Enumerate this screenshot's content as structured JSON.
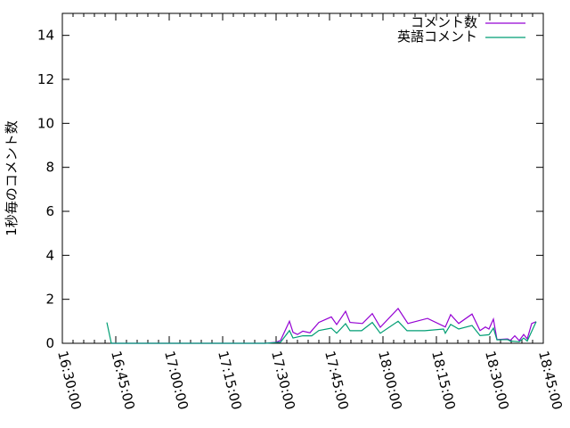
{
  "chart_data": {
    "type": "line",
    "title": "",
    "xlabel": "",
    "ylabel": "1秒毎のコメント数",
    "xlim": [
      "16:30:00",
      "18:45:00"
    ],
    "ylim": [
      0,
      15
    ],
    "x_tick_labels": [
      "16:30:00",
      "16:45:00",
      "17:00:00",
      "17:15:00",
      "17:30:00",
      "17:45:00",
      "18:00:00",
      "18:15:00",
      "18:30:00",
      "18:45:00"
    ],
    "y_tick_labels": [
      "0",
      "2",
      "4",
      "6",
      "8",
      "10",
      "12",
      "14"
    ],
    "grid": false,
    "legend_position": "top-right",
    "series": [
      {
        "name": "コメント数",
        "color": "#9400d3",
        "x": [
          "16:43:45",
          "17:27:00",
          "17:30:00",
          "17:31:15",
          "17:33:45",
          "17:34:45",
          "17:36:00",
          "17:37:30",
          "17:39:30",
          "17:42:00",
          "17:45:30",
          "17:47:00",
          "17:49:30",
          "17:50:45",
          "17:54:15",
          "17:57:00",
          "17:59:15",
          "18:04:15",
          "18:07:00",
          "18:12:30",
          "18:17:30",
          "18:19:00",
          "18:21:15",
          "18:25:00",
          "18:27:15",
          "18:28:45",
          "18:29:45",
          "18:31:00",
          "18:32:00",
          "18:35:00",
          "18:35:45",
          "18:37:00",
          "18:38:15",
          "18:39:30",
          "18:40:30",
          "18:41:45",
          "18:43:00"
        ],
        "y": [
          0,
          0,
          0.05,
          0.13,
          1.0,
          0.5,
          0.4,
          0.55,
          0.48,
          0.95,
          1.2,
          0.85,
          1.45,
          0.95,
          0.9,
          1.35,
          0.73,
          1.58,
          0.9,
          1.13,
          0.74,
          1.3,
          0.9,
          1.33,
          0.58,
          0.74,
          0.65,
          1.1,
          0.17,
          0.2,
          0.13,
          0.34,
          0.12,
          0.4,
          0.2,
          0.9,
          0.98
        ]
      },
      {
        "name": "英語コメント",
        "color": "#009e73",
        "x": [
          "16:42:30",
          "16:43:45",
          "17:27:00",
          "17:31:15",
          "17:33:45",
          "17:34:45",
          "17:37:30",
          "17:40:00",
          "17:42:00",
          "17:45:30",
          "17:47:00",
          "17:49:30",
          "17:50:45",
          "17:54:00",
          "17:57:00",
          "17:59:15",
          "18:04:15",
          "18:06:45",
          "18:11:45",
          "18:17:00",
          "18:17:30",
          "18:19:00",
          "18:21:15",
          "18:25:00",
          "18:27:15",
          "18:29:45",
          "18:31:00",
          "18:32:00",
          "18:35:00",
          "18:35:45",
          "18:38:15",
          "18:39:30",
          "18:40:30",
          "18:43:00"
        ],
        "y": [
          0.95,
          0,
          0,
          0.05,
          0.58,
          0.24,
          0.34,
          0.34,
          0.58,
          0.69,
          0.46,
          0.89,
          0.57,
          0.57,
          0.95,
          0.46,
          1.0,
          0.57,
          0.57,
          0.65,
          0.46,
          0.86,
          0.65,
          0.81,
          0.35,
          0.39,
          0.69,
          0.16,
          0.17,
          0.1,
          0.07,
          0.24,
          0.1,
          0.98
        ]
      }
    ]
  }
}
